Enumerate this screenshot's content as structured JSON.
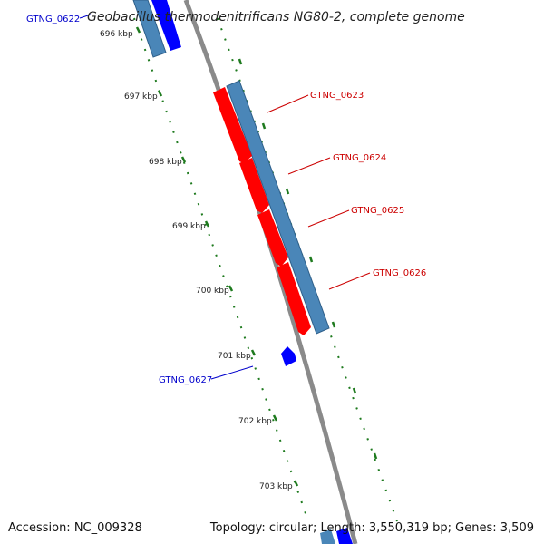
{
  "title": "Geobacillus thermodenitrificans NG80-2, complete genome",
  "footer": {
    "accession": "Accession: NC_009328",
    "summary": "Topology: circular; Length: 3,550,319 bp; Genes: 3,509"
  },
  "ticks": [
    "696 kbp",
    "697 kbp",
    "698 kbp",
    "699 kbp",
    "700 kbp",
    "701 kbp",
    "702 kbp",
    "703 kbp"
  ],
  "genes": [
    {
      "name": "GTNG_0622",
      "strand": "reverse"
    },
    {
      "name": "GTNG_0623",
      "strand": "forward"
    },
    {
      "name": "GTNG_0624",
      "strand": "forward"
    },
    {
      "name": "GTNG_0625",
      "strand": "forward"
    },
    {
      "name": "GTNG_0626",
      "strand": "forward"
    },
    {
      "name": "GTNG_0627",
      "strand": "reverse"
    }
  ],
  "colors": {
    "backbone": "#8a8a8a",
    "cds_forward": "#ff0000",
    "cds_reverse": "#0000ff",
    "gene_feature": "#4a86b8",
    "tick": "#1e7a1e",
    "label_forward": "#cc0000",
    "label_reverse": "#0000cc"
  }
}
